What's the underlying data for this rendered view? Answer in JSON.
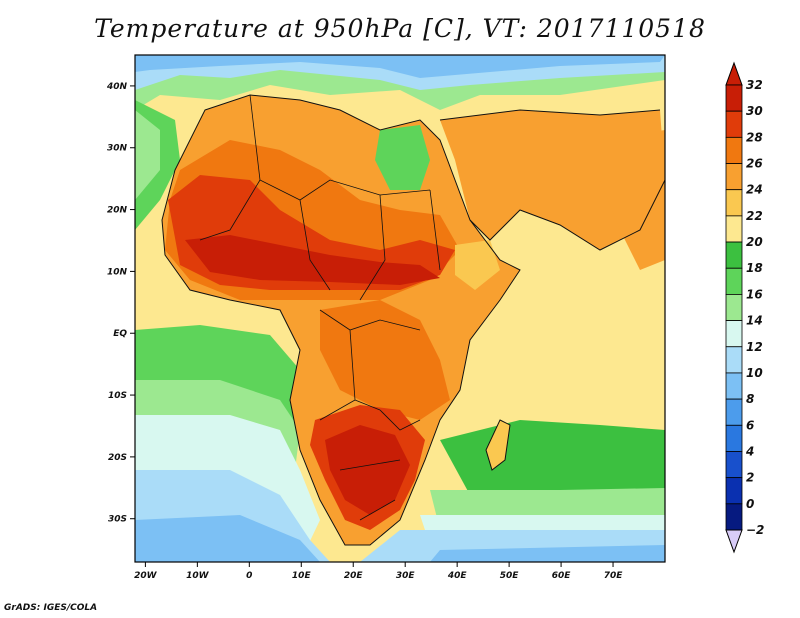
{
  "title": "Temperature at 950hPa [C], VT: 2017110518",
  "credit": "GrADS: IGES/COLA",
  "map": {
    "lon_range": [
      -22,
      80
    ],
    "lat_range": [
      -37,
      45
    ],
    "lon_ticks": [
      {
        "value": -20,
        "label": "20W"
      },
      {
        "value": -10,
        "label": "10W"
      },
      {
        "value": 0,
        "label": "0"
      },
      {
        "value": 10,
        "label": "10E"
      },
      {
        "value": 20,
        "label": "20E"
      },
      {
        "value": 30,
        "label": "30E"
      },
      {
        "value": 40,
        "label": "40E"
      },
      {
        "value": 50,
        "label": "50E"
      },
      {
        "value": 60,
        "label": "60E"
      },
      {
        "value": 70,
        "label": "70E"
      }
    ],
    "lat_ticks": [
      {
        "value": 40,
        "label": "40N"
      },
      {
        "value": 30,
        "label": "30N"
      },
      {
        "value": 20,
        "label": "20N"
      },
      {
        "value": 10,
        "label": "10N"
      },
      {
        "value": 0,
        "label": "EQ"
      },
      {
        "value": -10,
        "label": "10S"
      },
      {
        "value": -20,
        "label": "20S"
      },
      {
        "value": -30,
        "label": "30S"
      }
    ]
  },
  "colorbar": {
    "levels": [
      {
        "label": "32",
        "color": "#c81e06"
      },
      {
        "label": "30",
        "color": "#e03c0a"
      },
      {
        "label": "28",
        "color": "#f07810"
      },
      {
        "label": "26",
        "color": "#f8a030"
      },
      {
        "label": "24",
        "color": "#fac850"
      },
      {
        "label": "22",
        "color": "#fde890"
      },
      {
        "label": "20",
        "color": "#3cc040"
      },
      {
        "label": "18",
        "color": "#5ed45a"
      },
      {
        "label": "16",
        "color": "#9ce890"
      },
      {
        "label": "14",
        "color": "#d8f8f0"
      },
      {
        "label": "12",
        "color": "#aadcf8"
      },
      {
        "label": "10",
        "color": "#7cc0f4"
      },
      {
        "label": "8",
        "color": "#4c9cec"
      },
      {
        "label": "6",
        "color": "#2a78e0"
      },
      {
        "label": "4",
        "color": "#1850cc"
      },
      {
        "label": "2",
        "color": "#0a30b0"
      },
      {
        "label": "0",
        "color": "#061a80"
      },
      {
        "label": "−2",
        "color": "#d8ccf8"
      }
    ],
    "max_arrow_color": "#c81e06",
    "min_arrow_color": "#d8ccf8"
  }
}
